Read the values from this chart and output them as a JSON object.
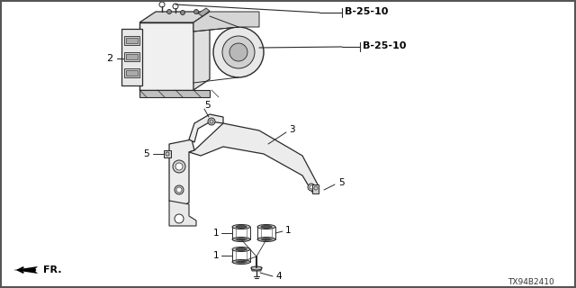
{
  "background_color": "#ffffff",
  "line_color": "#2a2a2a",
  "text_color": "#000000",
  "fig_width": 6.4,
  "fig_height": 3.2,
  "dpi": 100,
  "border": true,
  "labels": {
    "b2510_top": "B-25-10",
    "b2510_mid": "B-25-10",
    "part1": "1",
    "part2": "2",
    "part3": "3",
    "part4": "4",
    "part5": "5",
    "fr": "FR.",
    "diagram_id": "TX94B2410"
  }
}
